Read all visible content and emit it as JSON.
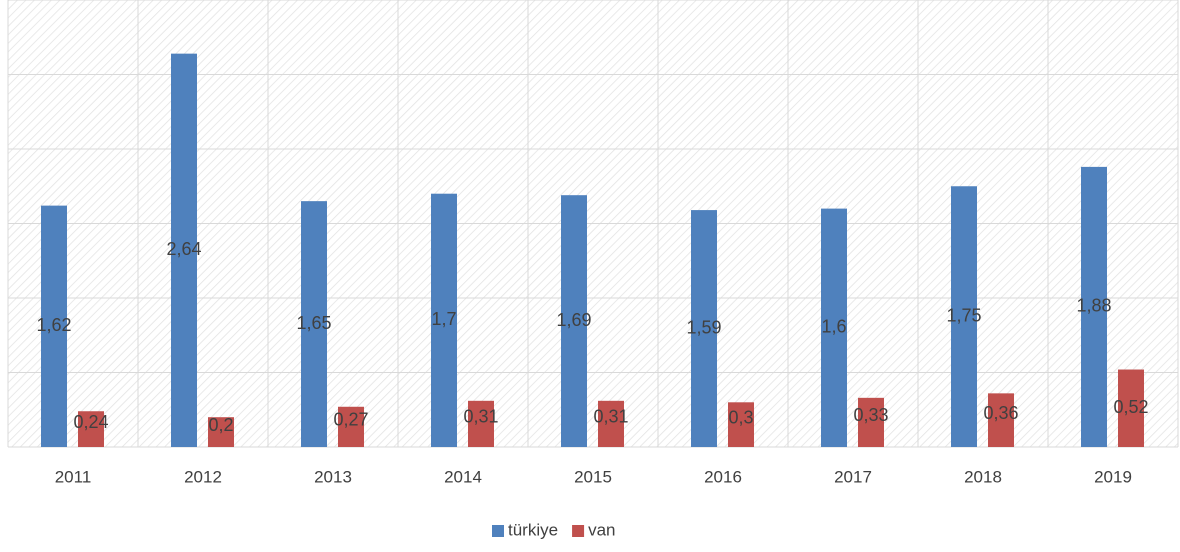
{
  "chart_data": {
    "type": "bar",
    "categories": [
      "2011",
      "2012",
      "2013",
      "2014",
      "2015",
      "2016",
      "2017",
      "2018",
      "2019"
    ],
    "series": [
      {
        "name": "türkiye",
        "color": "#4f81bd",
        "values": [
          1.62,
          2.64,
          1.65,
          1.7,
          1.69,
          1.59,
          1.6,
          1.75,
          1.88
        ],
        "value_labels": [
          "1,62",
          "2,64",
          "1,65",
          "1,7",
          "1,69",
          "1,59",
          "1,6",
          "1,75",
          "1,88"
        ]
      },
      {
        "name": "van",
        "color": "#c0504d",
        "values": [
          0.24,
          0.2,
          0.27,
          0.31,
          0.31,
          0.3,
          0.33,
          0.36,
          0.52
        ],
        "value_labels": [
          "0,24",
          "0,2",
          "0,27",
          "0,31",
          "0,31",
          "0,3",
          "0,33",
          "0,36",
          "0,52"
        ]
      }
    ],
    "ylim": [
      0,
      3
    ],
    "yticks": [
      0,
      0.5,
      1,
      1.5,
      2,
      2.5,
      3
    ],
    "grid": true,
    "legend": "bottom"
  }
}
